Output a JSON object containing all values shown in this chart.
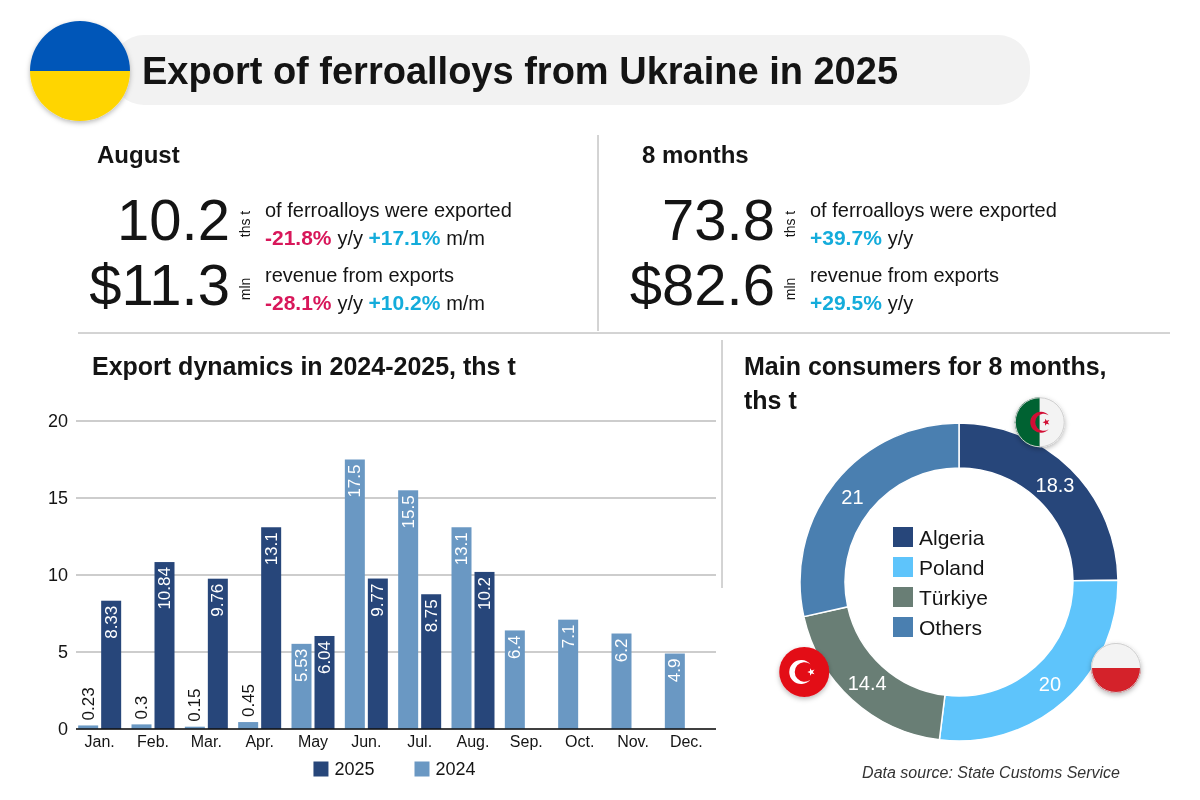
{
  "chart_data": [
    {
      "type": "other",
      "title": "Export of ferroalloys from Ukraine in 2025"
    },
    {
      "type": "other",
      "title": "August",
      "annotations": [
        "10.2",
        "ths t",
        "of ferroalloys were exported",
        "-21.8% y/y +17.1% m/m",
        "$11.3",
        "mln",
        "revenue from exports",
        "-28.1% y/y +10.2% m/m"
      ]
    },
    {
      "type": "other",
      "title": "8 months",
      "annotations": [
        "73.8",
        "ths t",
        "of ferroalloys were exported",
        "+39.7% y/y",
        "$82.6",
        "mln",
        "revenue from exports",
        "+29.5% y/y"
      ]
    },
    {
      "type": "bar",
      "title": "Export dynamics in 2024-2025, ths t",
      "categories": [
        "Jan.",
        "Feb.",
        "Mar.",
        "Apr.",
        "May",
        "Jun.",
        "Jul.",
        "Aug.",
        "Sep.",
        "Oct.",
        "Nov.",
        "Dec."
      ],
      "series": [
        {
          "name": "2025",
          "color": "#27467a",
          "values": [
            8.33,
            10.84,
            9.76,
            13.1,
            6.04,
            9.77,
            8.75,
            10.2,
            null,
            null,
            null,
            null
          ]
        },
        {
          "name": "2024",
          "color": "#6a98c3",
          "values": [
            0.23,
            0.3,
            0.15,
            0.45,
            5.53,
            17.5,
            15.5,
            13.1,
            6.4,
            7.1,
            6.2,
            4.9
          ]
        }
      ],
      "ylim": [
        0,
        20
      ],
      "yticks": [
        0,
        5,
        10,
        15,
        20
      ],
      "grid": "y",
      "legend": "bottom",
      "data_labels": true
    },
    {
      "type": "donut",
      "title": "Main consumers for 8 months, ths t",
      "categories": [
        "Algeria",
        "Poland",
        "Türkiye",
        "Others"
      ],
      "values": [
        18.3,
        20,
        14.4,
        21
      ],
      "colors": [
        "#27467a",
        "#5ec4fb",
        "#697e75",
        "#4a7fb0"
      ],
      "legend": "center",
      "data_labels": true,
      "annotations": [
        "Data source: State Customs Service"
      ]
    }
  ]
}
